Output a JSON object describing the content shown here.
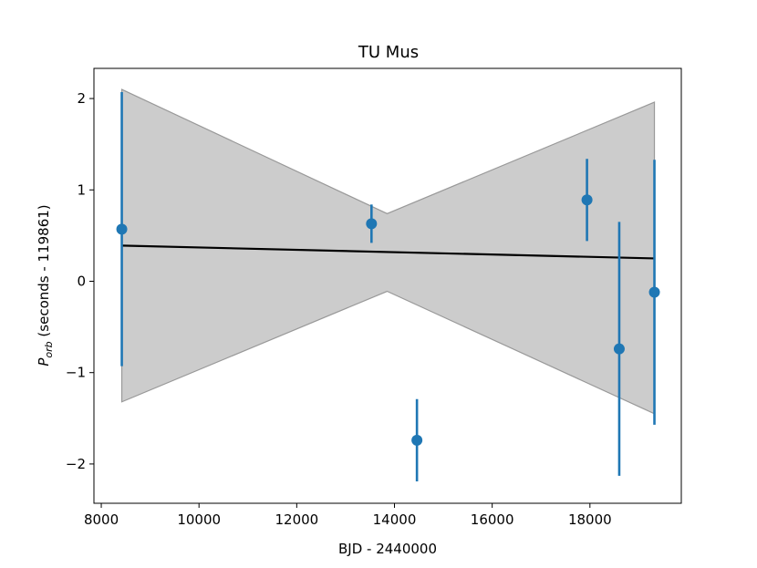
{
  "chart_data": {
    "type": "scatter",
    "title": "TU Mus",
    "xlabel": "BJD - 2440000",
    "ylabel_main": "P",
    "ylabel_sub": "orb",
    "ylabel_rest": " (seconds - 119861)",
    "xlim": [
      7850,
      19870
    ],
    "ylim": [
      -2.43,
      2.33
    ],
    "x_ticks": [
      8000,
      10000,
      12000,
      14000,
      16000,
      18000
    ],
    "x_tick_labels": [
      "8000",
      "10000",
      "12000",
      "14000",
      "16000",
      "18000"
    ],
    "y_ticks": [
      2,
      1,
      0,
      -1,
      -2
    ],
    "y_tick_labels": [
      "2",
      "1",
      "0",
      "−1",
      "−2"
    ],
    "grid": false,
    "colors": {
      "points": "#1f77b4",
      "fit_line": "#000000",
      "band_fill": "#cccccc",
      "band_edge": "#999999"
    },
    "points": [
      {
        "x": 8420,
        "y": 0.57,
        "yerr": 1.5
      },
      {
        "x": 13530,
        "y": 0.63,
        "yerr": 0.21
      },
      {
        "x": 14460,
        "y": -1.74,
        "yerr": 0.45
      },
      {
        "x": 17940,
        "y": 0.89,
        "yerr": 0.45
      },
      {
        "x": 18600,
        "y": -0.74,
        "yerr": 1.39
      },
      {
        "x": 19320,
        "y": -0.12,
        "yerr": 1.45
      }
    ],
    "fit_line": {
      "x": [
        8420,
        19320
      ],
      "y": [
        0.39,
        0.25
      ]
    },
    "confidence_band": {
      "x": [
        8420,
        13850,
        19320
      ],
      "upper": [
        2.1,
        0.74,
        1.96
      ],
      "lower": [
        -1.32,
        -0.11,
        -1.45
      ]
    }
  }
}
